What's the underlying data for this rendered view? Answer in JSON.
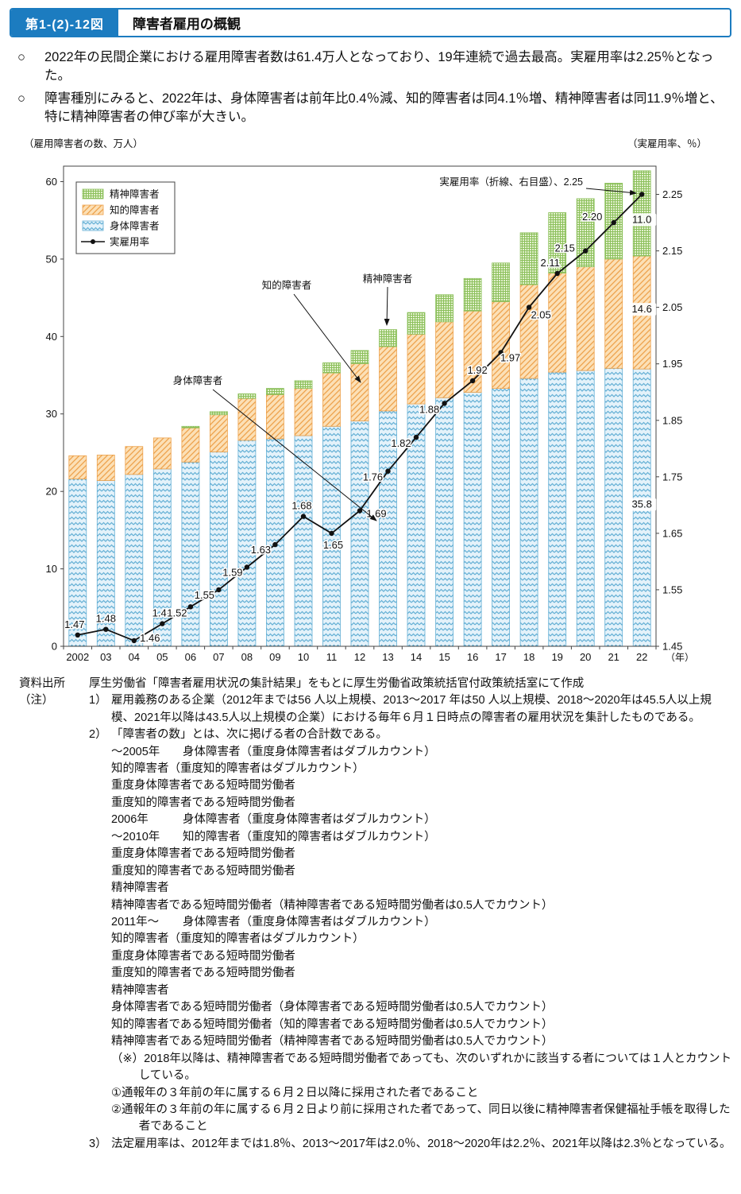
{
  "page": {
    "figure_label": "第1-(2)-12図",
    "figure_title": "障害者雇用の概観",
    "bullet_marker": "○",
    "bullets": [
      "2022年の民間企業における雇用障害者数は61.4万人となっており、19年連続で過去最高。実雇用率は2.25％となった。",
      "障害種別にみると、2022年は、身体障害者は前年比0.4％減、知的障害者は同4.1％増、精神障害者は同11.9％増と、特に精神障害者の伸び率が大きい。"
    ]
  },
  "chart_data": {
    "type": "bar",
    "subtype": "stacked-bar-with-line",
    "left_axis_title": "（雇用障害者の数、万人）",
    "right_axis_title": "（実雇用率、％）",
    "x_axis_suffix": "（年）",
    "categories": [
      "2002",
      "03",
      "04",
      "05",
      "06",
      "07",
      "08",
      "09",
      "10",
      "11",
      "12",
      "13",
      "14",
      "15",
      "16",
      "17",
      "18",
      "19",
      "20",
      "21",
      "22"
    ],
    "series": [
      {
        "name": "身体障害者",
        "pattern": "blue-wave",
        "values": [
          21.6,
          21.4,
          22.2,
          22.9,
          23.8,
          25.1,
          26.6,
          26.8,
          27.2,
          28.4,
          29.1,
          30.4,
          31.3,
          32.1,
          32.8,
          33.3,
          34.6,
          35.4,
          35.6,
          35.9,
          35.8
        ]
      },
      {
        "name": "知的障害者",
        "pattern": "orange-hatch",
        "values": [
          3.0,
          3.3,
          3.6,
          4.0,
          4.4,
          4.8,
          5.4,
          5.7,
          6.1,
          6.9,
          7.4,
          8.3,
          9.0,
          9.8,
          10.5,
          11.2,
          12.1,
          12.8,
          13.4,
          14.1,
          14.6
        ]
      },
      {
        "name": "精神障害者",
        "pattern": "green-grid",
        "values": [
          0,
          0,
          0,
          0,
          0.2,
          0.4,
          0.6,
          0.8,
          1.0,
          1.3,
          1.7,
          2.2,
          2.8,
          3.5,
          4.2,
          5.0,
          6.7,
          7.8,
          8.8,
          9.8,
          11.0
        ]
      }
    ],
    "line": {
      "name": "実雇用率",
      "values": [
        1.47,
        1.48,
        1.46,
        1.49,
        1.52,
        1.55,
        1.59,
        1.63,
        1.68,
        1.65,
        1.69,
        1.76,
        1.82,
        1.88,
        1.92,
        1.97,
        2.05,
        2.11,
        2.15,
        2.2,
        2.25
      ]
    },
    "left_ticks": [
      0,
      10,
      20,
      30,
      40,
      50,
      60
    ],
    "right_ticks": [
      1.45,
      1.55,
      1.65,
      1.75,
      1.85,
      1.95,
      2.05,
      2.15,
      2.25
    ],
    "ylim_left": [
      0,
      62
    ],
    "ylim_right": [
      1.45,
      2.3
    ],
    "legend": [
      "精神障害者",
      "知的障害者",
      "身体障害者",
      "実雇用率"
    ],
    "last_bar_labels": {
      "身体障害者": "35.8",
      "知的障害者": "14.6",
      "精神障害者": "11.0"
    },
    "annotations": {
      "rate": "実雇用率（折線、右目盛）、2.25",
      "mental": "精神障害者",
      "intellectual": "知的障害者",
      "physical": "身体障害者"
    },
    "colors": {
      "physical_bg": "#e4f2fa",
      "physical_line": "#62aed4",
      "intellectual_bg": "#fce0b6",
      "intellectual_line": "#eda14b",
      "mental_bg": "#e2f0cd",
      "mental_line": "#8cc05c",
      "rate_line": "#111111",
      "header_blue": "#1c7cc0"
    }
  },
  "source": {
    "label": "資料出所",
    "text": "厚生労働省「障害者雇用状況の集計結果」をもとに厚生労働省政策統括官付政策統括室にて作成"
  },
  "notes": {
    "label": "（注）",
    "items": [
      {
        "num": "1）",
        "text": "雇用義務のある企業（2012年までは56 人以上規模、2013～2017 年は50 人以上規模、2018～2020年は45.5人以上規模、2021年以降は43.5人以上規模の企業）における毎年６月１日時点の障害者の雇用状況を集計したものである。"
      },
      {
        "num": "2）",
        "text": "「障害者の数」とは、次に掲げる者の合計数である。",
        "sublines": [
          {
            "year": "～2005年",
            "text": "身体障害者（重度身体障害者はダブルカウント）"
          },
          {
            "text": "知的障害者（重度知的障害者はダブルカウント）"
          },
          {
            "text": "重度身体障害者である短時間労働者"
          },
          {
            "text": "重度知的障害者である短時間労働者"
          },
          {
            "year": "2006年",
            "text": "身体障害者（重度身体障害者はダブルカウント）"
          },
          {
            "year": "～2010年",
            "text": "知的障害者（重度知的障害者はダブルカウント）"
          },
          {
            "text": "重度身体障害者である短時間労働者"
          },
          {
            "text": "重度知的障害者である短時間労働者"
          },
          {
            "text": "精神障害者"
          },
          {
            "text": "精神障害者である短時間労働者（精神障害者である短時間労働者は0.5人でカウント）"
          },
          {
            "year": "2011年～",
            "text": "身体障害者（重度身体障害者はダブルカウント）"
          },
          {
            "text": "知的障害者（重度知的障害者はダブルカウント）"
          },
          {
            "text": "重度身体障害者である短時間労働者"
          },
          {
            "text": "重度知的障害者である短時間労働者"
          },
          {
            "text": "精神障害者"
          },
          {
            "text": "身体障害者である短時間労働者（身体障害者である短時間労働者は0.5人でカウント）"
          },
          {
            "text": "知的障害者である短時間労働者（知的障害者である短時間労働者は0.5人でカウント）"
          },
          {
            "text": "精神障害者である短時間労働者（精神障害者である短時間労働者は0.5人でカウント）"
          },
          {
            "text": "（※）2018年以降は、精神障害者である短時間労働者であっても、次のいずれかに該当する者については１人とカウントしている。"
          },
          {
            "text": "①通報年の３年前の年に属する６月２日以降に採用された者であること"
          },
          {
            "text": "②通報年の３年前の年に属する６月２日より前に採用された者であって、同日以後に精神障害者保健福祉手帳を取得した者であること"
          }
        ]
      },
      {
        "num": "3）",
        "text": "法定雇用率は、2012年までは1.8％、2013～2017年は2.0％、2018～2020年は2.2％、2021年以降は2.3％となっている。"
      }
    ]
  }
}
